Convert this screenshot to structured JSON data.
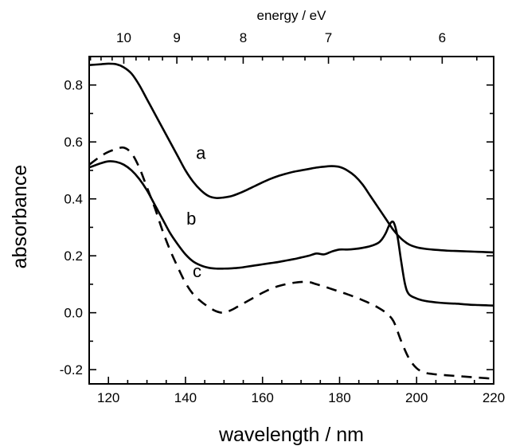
{
  "chart_data": {
    "type": "line",
    "title": "",
    "xlabel": "wavelength / nm",
    "ylabel": "absorbance",
    "top_axis_label": "energy / eV",
    "xlim": [
      115,
      220
    ],
    "ylim": [
      -0.25,
      0.9
    ],
    "x_ticks": [
      120,
      140,
      160,
      180,
      200,
      220
    ],
    "x_tick_labels": [
      "120",
      "140",
      "160",
      "180",
      "200",
      "220"
    ],
    "y_ticks": [
      -0.2,
      0.0,
      0.2,
      0.4,
      0.6,
      0.8
    ],
    "y_tick_labels": [
      "-0.2",
      "0.0",
      "0.2",
      "0.4",
      "0.6",
      "0.8"
    ],
    "top_ticks_ev": [
      10,
      9,
      8,
      7,
      6
    ],
    "top_tick_labels": [
      "10",
      "9",
      "8",
      "7",
      "6"
    ],
    "grid": false,
    "legend": "none",
    "series": [
      {
        "name": "a",
        "style": "solid",
        "color": "#000000",
        "x": [
          115,
          118,
          120,
          122,
          124,
          126,
          128,
          130,
          132,
          134,
          136,
          138,
          140,
          142,
          144,
          146,
          148,
          150,
          152,
          154,
          156,
          158,
          160,
          162,
          164,
          166,
          168,
          170,
          172,
          174,
          176,
          178,
          180,
          182,
          184,
          186,
          188,
          190,
          192,
          194,
          196,
          198,
          200,
          202,
          204,
          206,
          208,
          210,
          212,
          214,
          216,
          218,
          220
        ],
        "y": [
          0.87,
          0.873,
          0.875,
          0.873,
          0.862,
          0.84,
          0.8,
          0.75,
          0.7,
          0.65,
          0.6,
          0.55,
          0.5,
          0.46,
          0.43,
          0.41,
          0.403,
          0.405,
          0.41,
          0.42,
          0.432,
          0.445,
          0.458,
          0.47,
          0.48,
          0.488,
          0.495,
          0.5,
          0.505,
          0.51,
          0.513,
          0.515,
          0.512,
          0.5,
          0.48,
          0.45,
          0.41,
          0.37,
          0.33,
          0.29,
          0.26,
          0.24,
          0.23,
          0.225,
          0.222,
          0.22,
          0.218,
          0.217,
          0.216,
          0.215,
          0.214,
          0.213,
          0.212
        ]
      },
      {
        "name": "b",
        "style": "solid",
        "color": "#000000",
        "x": [
          115,
          118,
          120,
          122,
          124,
          126,
          128,
          130,
          132,
          134,
          136,
          138,
          140,
          142,
          144,
          146,
          148,
          150,
          152,
          154,
          156,
          158,
          160,
          162,
          164,
          166,
          168,
          170,
          172,
          174,
          176,
          178,
          180,
          182,
          184,
          186,
          188,
          190,
          191,
          192,
          193,
          194,
          195,
          196,
          197,
          198,
          200,
          202,
          204,
          206,
          208,
          210,
          212,
          214,
          216,
          218,
          220
        ],
        "y": [
          0.51,
          0.525,
          0.532,
          0.53,
          0.52,
          0.5,
          0.47,
          0.43,
          0.38,
          0.33,
          0.28,
          0.24,
          0.205,
          0.18,
          0.166,
          0.158,
          0.155,
          0.155,
          0.156,
          0.158,
          0.162,
          0.166,
          0.17,
          0.174,
          0.178,
          0.183,
          0.188,
          0.194,
          0.2,
          0.208,
          0.205,
          0.215,
          0.222,
          0.222,
          0.224,
          0.228,
          0.234,
          0.245,
          0.258,
          0.28,
          0.31,
          0.318,
          0.27,
          0.18,
          0.1,
          0.065,
          0.05,
          0.042,
          0.038,
          0.035,
          0.033,
          0.032,
          0.03,
          0.028,
          0.027,
          0.026,
          0.025
        ]
      },
      {
        "name": "c",
        "style": "dashed",
        "color": "#000000",
        "x": [
          115,
          118,
          120,
          122,
          124,
          126,
          128,
          130,
          132,
          134,
          136,
          138,
          140,
          142,
          144,
          146,
          148,
          150,
          152,
          154,
          156,
          158,
          160,
          162,
          164,
          166,
          168,
          170,
          172,
          174,
          176,
          178,
          180,
          182,
          184,
          186,
          188,
          190,
          192,
          194,
          196,
          198,
          200,
          202,
          204,
          206,
          208,
          210,
          212,
          214,
          216,
          218,
          220
        ],
        "y": [
          0.52,
          0.55,
          0.565,
          0.575,
          0.58,
          0.56,
          0.51,
          0.44,
          0.37,
          0.29,
          0.22,
          0.16,
          0.105,
          0.065,
          0.04,
          0.02,
          0.005,
          0.0,
          0.01,
          0.025,
          0.04,
          0.055,
          0.07,
          0.083,
          0.093,
          0.1,
          0.105,
          0.108,
          0.108,
          0.1,
          0.092,
          0.083,
          0.074,
          0.065,
          0.055,
          0.044,
          0.032,
          0.018,
          0.0,
          -0.03,
          -0.1,
          -0.16,
          -0.195,
          -0.21,
          -0.215,
          -0.218,
          -0.22,
          -0.222,
          -0.224,
          -0.226,
          -0.228,
          -0.23,
          -0.232
        ]
      }
    ],
    "annotations": [
      {
        "text": "a",
        "x": 144,
        "y": 0.54
      },
      {
        "text": "b",
        "x": 141.5,
        "y": 0.31
      },
      {
        "text": "c",
        "x": 143,
        "y": 0.125
      }
    ]
  }
}
